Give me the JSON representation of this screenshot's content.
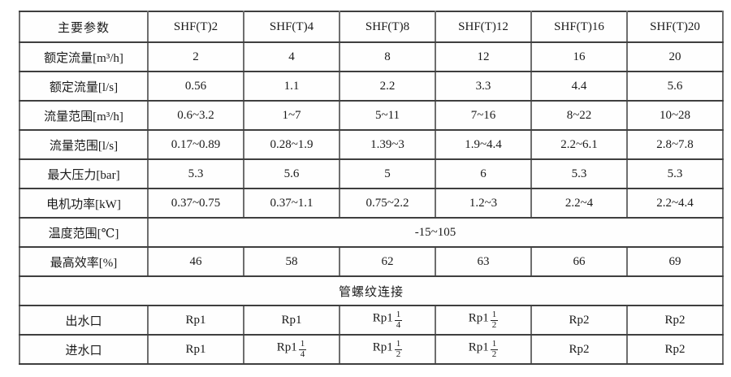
{
  "page": {
    "background": "#ffffff",
    "text_color": "#1a1a1a",
    "rule_color_horizontal": "#3f3f3f",
    "rule_color_vertical": "#6e6e6e"
  },
  "table": {
    "header": [
      "主要参数",
      "SHF(T)2",
      "SHF(T)4",
      "SHF(T)8",
      "SHF(T)12",
      "SHF(T)16",
      "SHF(T)20"
    ],
    "rows": [
      {
        "label": "额定流量[m³/h]",
        "values": [
          "2",
          "4",
          "8",
          "12",
          "16",
          "20"
        ]
      },
      {
        "label": "额定流量[l/s]",
        "values": [
          "0.56",
          "1.1",
          "2.2",
          "3.3",
          "4.4",
          "5.6"
        ]
      },
      {
        "label": "流量范围[m³/h]",
        "values": [
          "0.6~3.2",
          "1~7",
          "5~11",
          "7~16",
          "8~22",
          "10~28"
        ]
      },
      {
        "label": "流量范围[l/s]",
        "values": [
          "0.17~0.89",
          "0.28~1.9",
          "1.39~3",
          "1.9~4.4",
          "2.2~6.1",
          "2.8~7.8"
        ]
      },
      {
        "label": "最大压力[bar]",
        "values": [
          "5.3",
          "5.6",
          "5",
          "6",
          "5.3",
          "5.3"
        ]
      },
      {
        "label": "电机功率[kW]",
        "values": [
          "0.37~0.75",
          "0.37~1.1",
          "0.75~2.2",
          "1.2~3",
          "2.2~4",
          "2.2~4.4"
        ]
      },
      {
        "label": "温度范围[℃]",
        "span_value": "-15~105"
      },
      {
        "label": "最高效率[%]",
        "values": [
          "46",
          "58",
          "62",
          "63",
          "66",
          "69"
        ]
      },
      {
        "section": "管螺纹连接"
      },
      {
        "label": "出水口",
        "values": [
          "Rp1",
          "Rp1",
          {
            "text": "Rp1",
            "frac_num": "1",
            "frac_den": "4"
          },
          {
            "text": "Rp1",
            "frac_num": "1",
            "frac_den": "2"
          },
          "Rp2",
          "Rp2"
        ]
      },
      {
        "label": "进水口",
        "values": [
          "Rp1",
          {
            "text": "Rp1",
            "frac_num": "1",
            "frac_den": "4"
          },
          {
            "text": "Rp1",
            "frac_num": "1",
            "frac_den": "2"
          },
          {
            "text": "Rp1",
            "frac_num": "1",
            "frac_den": "2"
          },
          "Rp2",
          "Rp2"
        ]
      }
    ]
  }
}
